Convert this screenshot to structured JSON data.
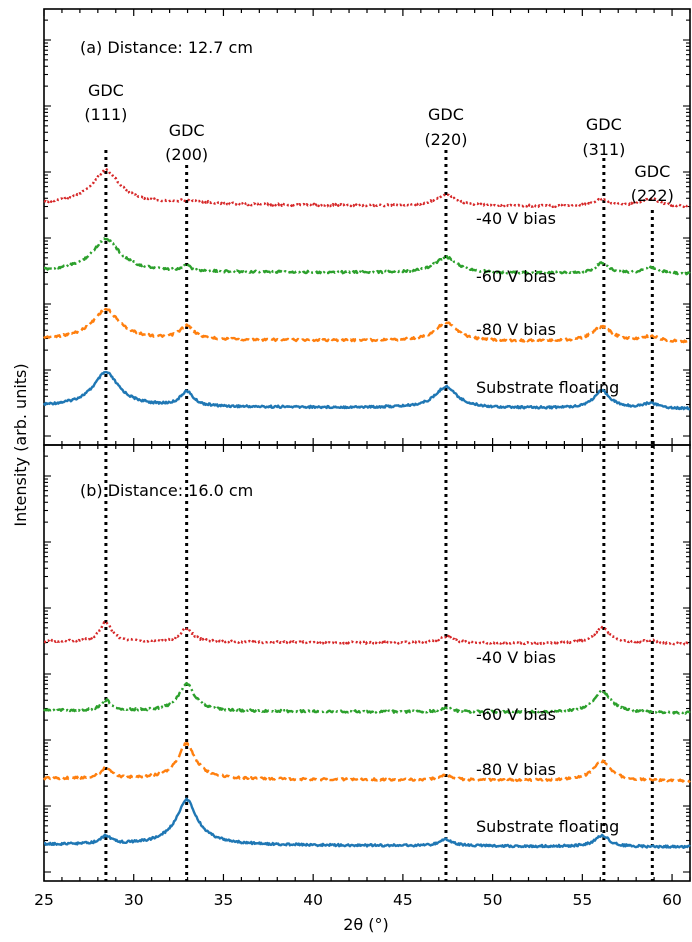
{
  "chart_data": {
    "type": "line",
    "xlabel": "2θ (°)",
    "ylabel": "Intensity (arb. units)",
    "xlim": [
      25,
      61
    ],
    "x_ticks": [
      "25",
      "30",
      "35",
      "40",
      "45",
      "50",
      "55",
      "60"
    ],
    "y_scale": "log",
    "colors": {
      "Substrate floating": "#1f77b4",
      "-40 V bias": "#ff7f0e",
      "-60 V bias": "#2ca02c",
      "-80 V bias": "#d62728",
      "reference_lines": "#000000"
    },
    "reference_lines_x": [
      28.45,
      32.95,
      47.4,
      56.2,
      58.9
    ],
    "peak_labels": [
      {
        "line1": "GDC",
        "line2": "(111)",
        "x": 28.45
      },
      {
        "line1": "GDC",
        "line2": "(200)",
        "x": 32.95
      },
      {
        "line1": "GDC",
        "line2": "(220)",
        "x": 47.4
      },
      {
        "line1": "GDC",
        "line2": "(311)",
        "x": 56.2
      },
      {
        "line1": "GDC",
        "line2": "(222)",
        "x": 58.9
      }
    ],
    "panels": [
      {
        "label": "(a) Distance: 12.7 cm",
        "series": [
          {
            "name": "Substrate floating",
            "style": "solid",
            "baseline": 1.0,
            "slope": 0.012,
            "peaks": [
              [
                28.45,
                6.5,
                0.55
              ],
              [
                32.95,
                1.5,
                0.35
              ],
              [
                47.4,
                2.4,
                0.55
              ],
              [
                56.1,
                1.7,
                0.45
              ],
              [
                58.8,
                0.35,
                0.5
              ]
            ]
          },
          {
            "name": "-40 V bias",
            "style": "dashed",
            "baseline": 1.0,
            "slope": 0.012,
            "peaks": [
              [
                28.45,
                5.0,
                0.6
              ],
              [
                32.95,
                1.3,
                0.4
              ],
              [
                47.4,
                1.9,
                0.55
              ],
              [
                56.1,
                1.3,
                0.55
              ],
              [
                58.8,
                0.35,
                0.5
              ]
            ]
          },
          {
            "name": "-60 V bias",
            "style": "dashdot",
            "baseline": 1.0,
            "slope": 0.012,
            "peaks": [
              [
                28.45,
                6.0,
                0.6
              ],
              [
                32.95,
                0.6,
                0.18
              ],
              [
                47.4,
                1.5,
                0.6
              ],
              [
                56.1,
                0.8,
                0.4
              ],
              [
                58.8,
                0.4,
                0.5
              ]
            ]
          },
          {
            "name": "-80 V bias",
            "style": "dotted",
            "baseline": 1.0,
            "slope": 0.012,
            "peaks": [
              [
                28.45,
                6.5,
                0.6
              ],
              [
                32.95,
                0.2,
                1.5
              ],
              [
                47.4,
                0.9,
                0.6
              ],
              [
                56.1,
                0.5,
                0.45
              ],
              [
                58.8,
                0.55,
                0.6
              ]
            ]
          }
        ]
      },
      {
        "label": "(b) Distance: 16.0 cm",
        "series": [
          {
            "name": "Substrate floating",
            "style": "solid",
            "baseline": 1.0,
            "slope": 0.012,
            "peaks": [
              [
                28.45,
                0.7,
                0.3
              ],
              [
                32.95,
                13.0,
                0.38
              ],
              [
                47.4,
                0.45,
                0.4
              ],
              [
                56.1,
                0.9,
                0.4
              ]
            ]
          },
          {
            "name": "-40 V bias",
            "style": "dashed",
            "baseline": 1.0,
            "slope": 0.012,
            "peaks": [
              [
                28.45,
                0.9,
                0.3
              ],
              [
                32.95,
                7.0,
                0.36
              ],
              [
                47.4,
                0.3,
                0.4
              ],
              [
                56.1,
                2.0,
                0.45
              ]
            ]
          },
          {
            "name": "-60 V bias",
            "style": "dashdot",
            "baseline": 1.0,
            "slope": 0.012,
            "peaks": [
              [
                28.45,
                0.9,
                0.28
              ],
              [
                32.95,
                4.0,
                0.36
              ],
              [
                47.4,
                0.25,
                0.4
              ],
              [
                56.1,
                2.3,
                0.45
              ]
            ]
          },
          {
            "name": "-80 V bias",
            "style": "dotted",
            "baseline": 1.0,
            "slope": 0.012,
            "peaks": [
              [
                28.45,
                2.3,
                0.3
              ],
              [
                32.95,
                1.3,
                0.33
              ],
              [
                47.4,
                0.45,
                0.45
              ],
              [
                56.1,
                1.4,
                0.45
              ],
              [
                58.8,
                0.2,
                0.5
              ]
            ]
          }
        ]
      }
    ]
  }
}
